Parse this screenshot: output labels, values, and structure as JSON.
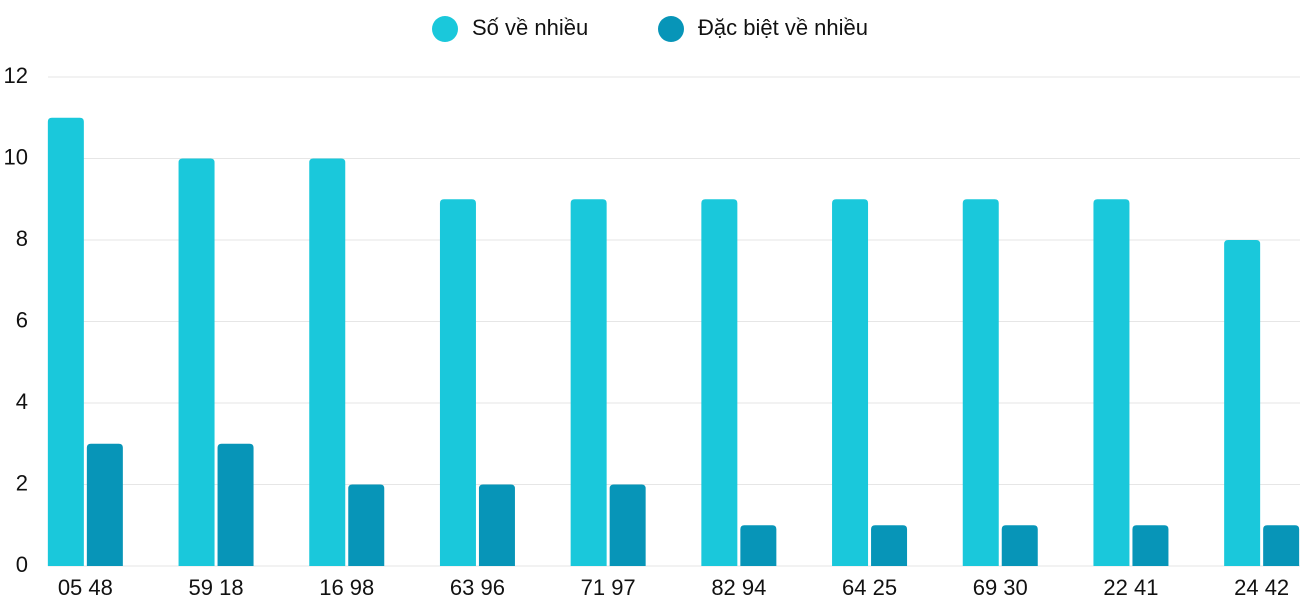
{
  "chart_data": {
    "type": "bar",
    "categories": [
      "05 48",
      "59 18",
      "16 98",
      "63 96",
      "71 97",
      "82 94",
      "64 25",
      "69 30",
      "22 41",
      "24 42"
    ],
    "series": [
      {
        "name": "Số về nhiều",
        "color": "#1ac8db",
        "values": [
          11,
          10,
          10,
          9,
          9,
          9,
          9,
          9,
          9,
          8
        ]
      },
      {
        "name": "Đặc biệt về nhiều",
        "color": "#0795b8",
        "values": [
          3,
          3,
          2,
          2,
          2,
          1,
          1,
          1,
          1,
          1
        ]
      }
    ],
    "ylim": [
      0,
      12
    ],
    "yticks": [
      0,
      2,
      4,
      6,
      8,
      10,
      12
    ],
    "grid": true,
    "legend": "top"
  }
}
